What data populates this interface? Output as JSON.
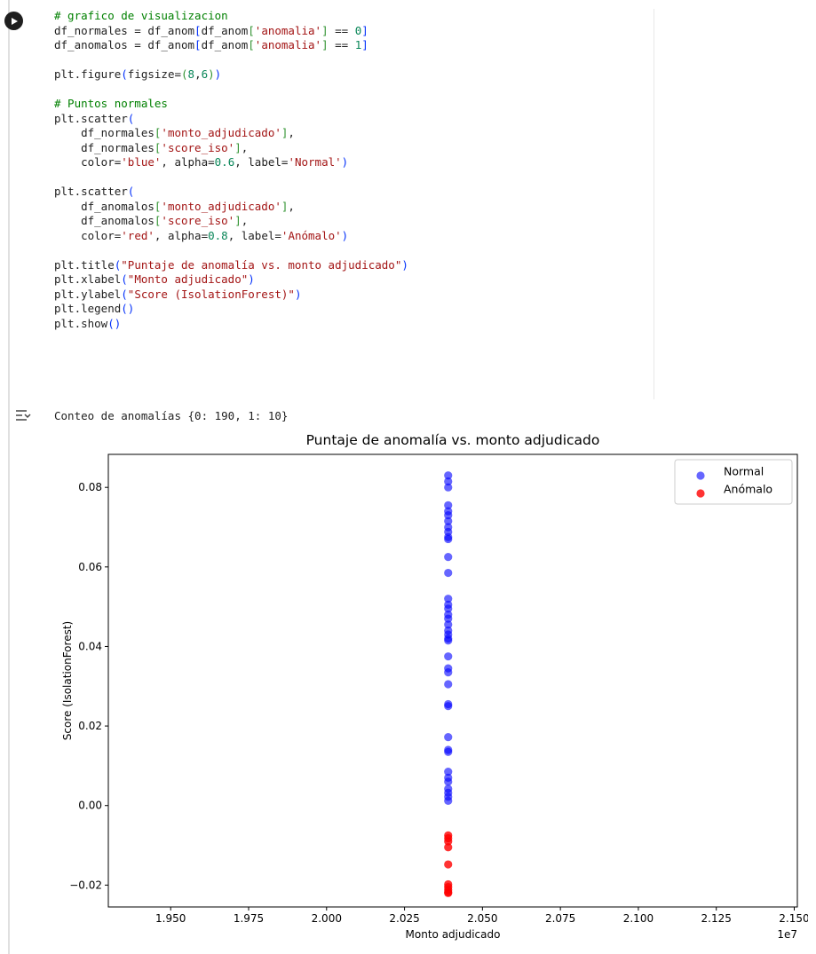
{
  "code_lines": [
    [
      {
        "t": "# grafico de visualizacion",
        "c": "cm"
      }
    ],
    [
      {
        "t": "df_normales = df_anom"
      },
      {
        "t": "[",
        "c": "pa"
      },
      {
        "t": "df_anom"
      },
      {
        "t": "[",
        "c": "pb"
      },
      {
        "t": "'anomalia'",
        "c": "st"
      },
      {
        "t": "]",
        "c": "pb"
      },
      {
        "t": " == "
      },
      {
        "t": "0",
        "c": "nm"
      },
      {
        "t": "]",
        "c": "pa"
      }
    ],
    [
      {
        "t": "df_anomalos = df_anom"
      },
      {
        "t": "[",
        "c": "pa"
      },
      {
        "t": "df_anom"
      },
      {
        "t": "[",
        "c": "pb"
      },
      {
        "t": "'anomalia'",
        "c": "st"
      },
      {
        "t": "]",
        "c": "pb"
      },
      {
        "t": " == "
      },
      {
        "t": "1",
        "c": "nm"
      },
      {
        "t": "]",
        "c": "pa"
      }
    ],
    [],
    [
      {
        "t": "plt.figure"
      },
      {
        "t": "(",
        "c": "pa"
      },
      {
        "t": "figsize="
      },
      {
        "t": "(",
        "c": "pb"
      },
      {
        "t": "8",
        "c": "nm"
      },
      {
        "t": ","
      },
      {
        "t": "6",
        "c": "nm"
      },
      {
        "t": ")",
        "c": "pb"
      },
      {
        "t": ")",
        "c": "pa"
      }
    ],
    [],
    [
      {
        "t": "# Puntos normales",
        "c": "cm"
      }
    ],
    [
      {
        "t": "plt.scatter"
      },
      {
        "t": "(",
        "c": "pa"
      }
    ],
    [
      {
        "t": "    df_normales"
      },
      {
        "t": "[",
        "c": "pb"
      },
      {
        "t": "'monto_adjudicado'",
        "c": "st"
      },
      {
        "t": "]",
        "c": "pb"
      },
      {
        "t": ","
      }
    ],
    [
      {
        "t": "    df_normales"
      },
      {
        "t": "[",
        "c": "pb"
      },
      {
        "t": "'score_iso'",
        "c": "st"
      },
      {
        "t": "]",
        "c": "pb"
      },
      {
        "t": ","
      }
    ],
    [
      {
        "t": "    color="
      },
      {
        "t": "'blue'",
        "c": "st"
      },
      {
        "t": ", alpha="
      },
      {
        "t": "0.6",
        "c": "nm"
      },
      {
        "t": ", label="
      },
      {
        "t": "'Normal'",
        "c": "st"
      },
      {
        "t": ")",
        "c": "pa"
      }
    ],
    [],
    [
      {
        "t": "plt.scatter"
      },
      {
        "t": "(",
        "c": "pa"
      }
    ],
    [
      {
        "t": "    df_anomalos"
      },
      {
        "t": "[",
        "c": "pb"
      },
      {
        "t": "'monto_adjudicado'",
        "c": "st"
      },
      {
        "t": "]",
        "c": "pb"
      },
      {
        "t": ","
      }
    ],
    [
      {
        "t": "    df_anomalos"
      },
      {
        "t": "[",
        "c": "pb"
      },
      {
        "t": "'score_iso'",
        "c": "st"
      },
      {
        "t": "]",
        "c": "pb"
      },
      {
        "t": ","
      }
    ],
    [
      {
        "t": "    color="
      },
      {
        "t": "'red'",
        "c": "st"
      },
      {
        "t": ", alpha="
      },
      {
        "t": "0.8",
        "c": "nm"
      },
      {
        "t": ", label="
      },
      {
        "t": "'Anómalo'",
        "c": "st"
      },
      {
        "t": ")",
        "c": "pa"
      }
    ],
    [],
    [
      {
        "t": "plt.title"
      },
      {
        "t": "(",
        "c": "pa"
      },
      {
        "t": "\"Puntaje de anomalía vs. monto adjudicado\"",
        "c": "st"
      },
      {
        "t": ")",
        "c": "pa"
      }
    ],
    [
      {
        "t": "plt.xlabel"
      },
      {
        "t": "(",
        "c": "pa"
      },
      {
        "t": "\"Monto adjudicado\"",
        "c": "st"
      },
      {
        "t": ")",
        "c": "pa"
      }
    ],
    [
      {
        "t": "plt.ylabel"
      },
      {
        "t": "(",
        "c": "pa"
      },
      {
        "t": "\"Score (IsolationForest)\"",
        "c": "st"
      },
      {
        "t": ")",
        "c": "pa"
      }
    ],
    [
      {
        "t": "plt.legend"
      },
      {
        "t": "()",
        "c": "pa"
      }
    ],
    [
      {
        "t": "plt.show"
      },
      {
        "t": "()",
        "c": "pa"
      }
    ]
  ],
  "output": {
    "text": "Conteo de anomalías {0: 190, 1: 10}"
  },
  "icons": {
    "run": "play-icon",
    "output_toggle": "output-collapse-icon"
  },
  "chart_data": {
    "type": "scatter",
    "title": "Puntaje de anomalía vs. monto adjudicado",
    "xlabel": "Monto adjudicado",
    "ylabel": "Score (IsolationForest)",
    "x_offset_label": "1e7",
    "xlim": [
      1.93,
      2.151
    ],
    "ylim": [
      -0.0255,
      0.0883
    ],
    "x_ticks": [
      1.95,
      1.975,
      2.0,
      2.025,
      2.05,
      2.075,
      2.1,
      2.125,
      2.15
    ],
    "x_tick_labels": [
      "1.950",
      "1.975",
      "2.000",
      "2.025",
      "2.050",
      "2.075",
      "2.100",
      "2.125",
      "2.150"
    ],
    "y_ticks": [
      0.08,
      0.06,
      0.04,
      0.02,
      0.0,
      -0.02
    ],
    "y_tick_labels": [
      "0.08",
      "0.06",
      "0.04",
      "0.02",
      "0.00",
      "−0.02"
    ],
    "grid": false,
    "legend_position": "top-right",
    "series": [
      {
        "name": "Normal",
        "color": "#0000ff",
        "alpha": 0.6,
        "x": 2.039,
        "y": [
          0.083,
          0.0815,
          0.08,
          0.0755,
          0.074,
          0.073,
          0.0715,
          0.07,
          0.0688,
          0.0675,
          0.067,
          0.0625,
          0.0585,
          0.052,
          0.0505,
          0.0495,
          0.048,
          0.047,
          0.0455,
          0.044,
          0.043,
          0.042,
          0.0415,
          0.0375,
          0.0345,
          0.0335,
          0.0305,
          0.0255,
          0.025,
          0.0172,
          0.014,
          0.0135,
          0.0085,
          0.007,
          0.006,
          0.0042,
          0.0032,
          0.0022,
          0.0012
        ]
      },
      {
        "name": "Anómalo",
        "color": "#ff0000",
        "alpha": 0.8,
        "x": 2.039,
        "y": [
          -0.0075,
          -0.0082,
          -0.009,
          -0.0105,
          -0.0148,
          -0.0198,
          -0.0205,
          -0.0212,
          -0.0218,
          -0.022
        ]
      }
    ]
  }
}
